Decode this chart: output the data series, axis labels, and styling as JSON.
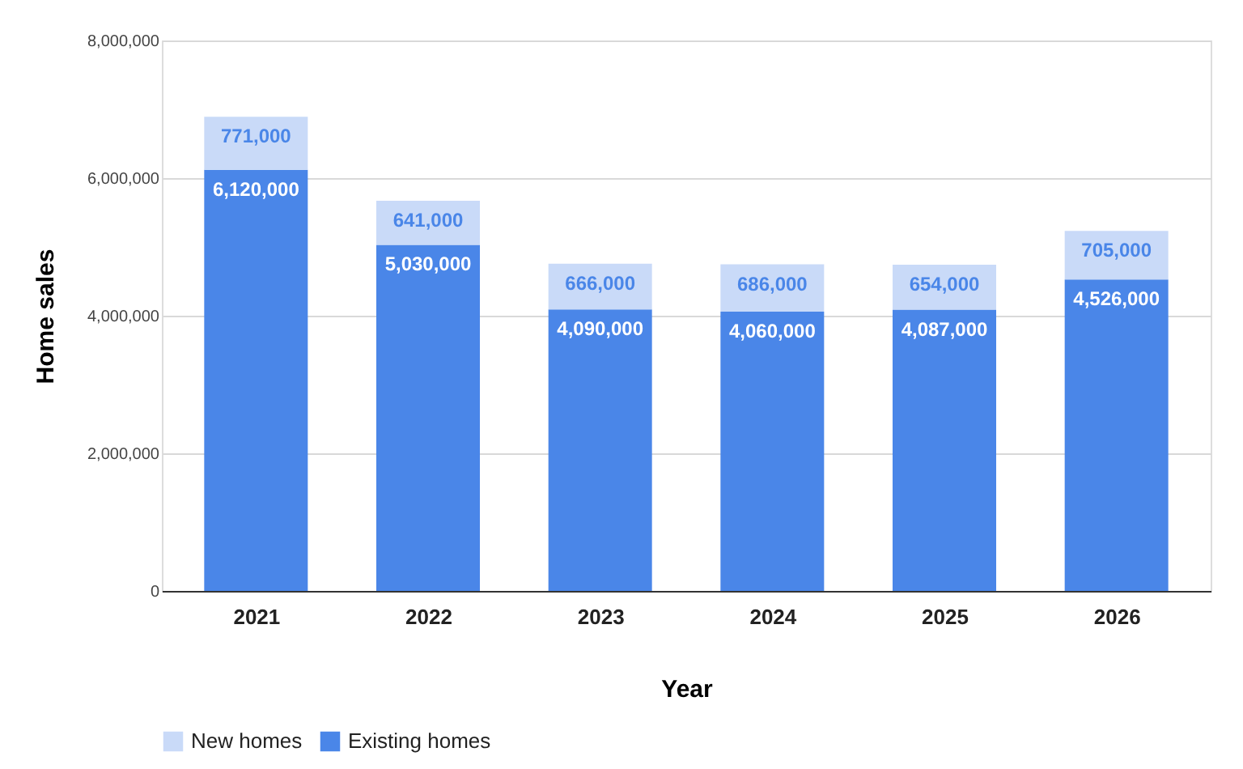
{
  "chart_data": {
    "type": "bar",
    "stacked": true,
    "xlabel": "Year",
    "ylabel": "Home sales",
    "categories": [
      "2021",
      "2022",
      "2023",
      "2024",
      "2025",
      "2026"
    ],
    "series": [
      {
        "name": "Existing homes",
        "color": "#4a86e8",
        "values": [
          6120000,
          5030000,
          4090000,
          4060000,
          4087000,
          4526000
        ],
        "value_labels": [
          "6,120,000",
          "5,030,000",
          "4,090,000",
          "4,060,000",
          "4,087,000",
          "4,526,000"
        ]
      },
      {
        "name": "New homes",
        "color": "#c9daf8",
        "values": [
          771000,
          641000,
          666000,
          686000,
          654000,
          705000
        ],
        "value_labels": [
          "771,000",
          "641,000",
          "666,000",
          "686,000",
          "654,000",
          "705,000"
        ]
      }
    ],
    "ylim": [
      0,
      8000000
    ],
    "yticks": [
      0,
      {
        "value": 2000000,
        "label": "2,000,000"
      },
      {
        "value": 4000000,
        "label": "4,000,000"
      },
      {
        "value": 6000000,
        "label": "6,000,000"
      },
      {
        "value": 8000000,
        "label": "8,000,000"
      }
    ],
    "grid": "y",
    "legend": "bottom"
  }
}
